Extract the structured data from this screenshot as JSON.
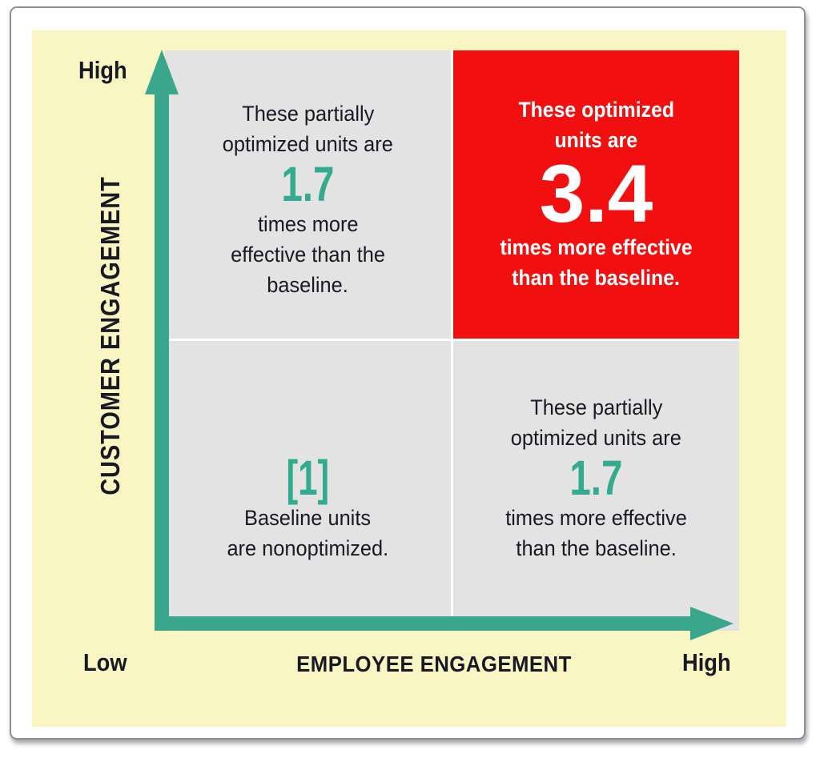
{
  "axes": {
    "y": {
      "label": "CUSTOMER ENGAGEMENT",
      "high_tick": "High"
    },
    "x": {
      "label": "EMPLOYEE ENGAGEMENT",
      "low_tick": "Low",
      "high_tick": "High"
    }
  },
  "quadrants": {
    "top_left": {
      "pre": [
        "These partially",
        "optimized units are"
      ],
      "value": "1.7",
      "post": [
        "times more",
        "effective than the",
        "baseline."
      ]
    },
    "top_right": {
      "pre": [
        "These optimized",
        "units are"
      ],
      "value": "3.4",
      "post": [
        "times more effective",
        "than the baseline."
      ]
    },
    "bottom_left": {
      "value": "[1]",
      "post": [
        "Baseline units",
        "are nonoptimized."
      ]
    },
    "bottom_right": {
      "pre": [
        "These partially",
        "optimized units are"
      ],
      "value": "1.7",
      "post": [
        "times more effective",
        "than the baseline."
      ]
    }
  },
  "colors": {
    "panel_yellow": "#f9f6c4",
    "quadrant_gray": "#e3e3e4",
    "highlight_red": "#f20f0f",
    "axis_teal": "#3aa78c",
    "value_teal": "#33ab8e",
    "text_dark": "#191923",
    "text_white": "#ffffff"
  },
  "chart_data": {
    "type": "heatmap",
    "title": "",
    "xlabel": "EMPLOYEE ENGAGEMENT",
    "ylabel": "CUSTOMER ENGAGEMENT",
    "x_categories": [
      "Low",
      "High"
    ],
    "y_categories": [
      "High",
      "Low"
    ],
    "values": [
      [
        1.7,
        3.4
      ],
      [
        1,
        1.7
      ]
    ],
    "value_unit": "times more effective than the baseline",
    "highlighted_cell": {
      "row": "High",
      "col": "High",
      "value": 3.4
    },
    "cell_notes": [
      [
        "These partially optimized units are 1.7 times more effective than the baseline.",
        "These optimized units are 3.4 times more effective than the baseline."
      ],
      [
        "[1] Baseline units are nonoptimized.",
        "These partially optimized units are 1.7 times more effective than the baseline."
      ]
    ],
    "legend_position": "none",
    "grid": false
  }
}
